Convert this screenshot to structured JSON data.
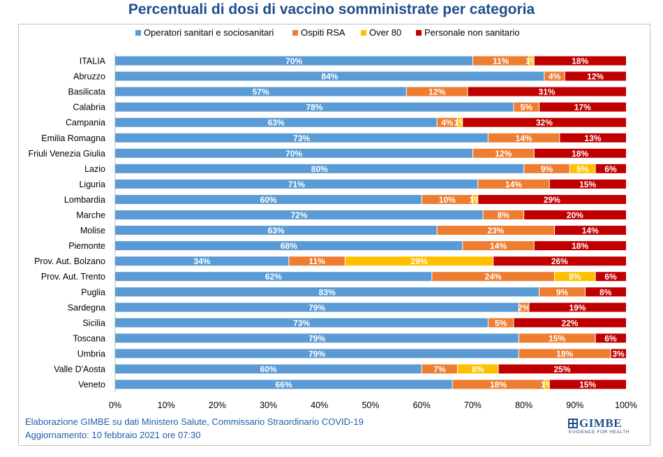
{
  "chart_data": {
    "type": "bar",
    "orientation": "horizontal",
    "stacked": true,
    "percent": true,
    "title": "Percentuali di dosi di vaccino somministrate per categoria",
    "categories": [
      "ITALIA",
      "Abruzzo",
      "Basilicata",
      "Calabria",
      "Campania",
      "Emilia Romagna",
      "Friuli Venezia Giulia",
      "Lazio",
      "Liguria",
      "Lombardia",
      "Marche",
      "Molise",
      "Piemonte",
      "Prov. Aut. Bolzano",
      "Prov. Aut. Trento",
      "Puglia",
      "Sardegna",
      "Sicilia",
      "Toscana",
      "Umbria",
      "Valle D'Aosta",
      "Veneto"
    ],
    "series": [
      {
        "name": "Operatori sanitari e sociosanitari",
        "color": "#5b9bd5",
        "values": [
          70,
          84,
          57,
          78,
          63,
          73,
          70,
          80,
          71,
          60,
          72,
          63,
          68,
          34,
          62,
          83,
          79,
          73,
          79,
          79,
          60,
          66
        ]
      },
      {
        "name": "Ospiti RSA",
        "color": "#ed7d31",
        "values": [
          11,
          4,
          12,
          5,
          4,
          14,
          12,
          9,
          14,
          10,
          8,
          23,
          14,
          11,
          24,
          9,
          2,
          5,
          15,
          18,
          7,
          18
        ]
      },
      {
        "name": "Over 80",
        "color": "#ffc000",
        "values": [
          1,
          0,
          0,
          0,
          1,
          0,
          0,
          5,
          0,
          1,
          0,
          0,
          0,
          29,
          8,
          0,
          0,
          0,
          0,
          0,
          8,
          1
        ]
      },
      {
        "name": "Personale non sanitario",
        "color": "#c00000",
        "values": [
          18,
          12,
          31,
          17,
          32,
          13,
          18,
          6,
          15,
          29,
          20,
          14,
          18,
          26,
          6,
          8,
          19,
          22,
          6,
          3,
          25,
          15
        ]
      }
    ],
    "xlim": [
      0,
      100
    ],
    "xticks": [
      "0%",
      "10%",
      "20%",
      "30%",
      "40%",
      "50%",
      "60%",
      "70%",
      "80%",
      "90%",
      "100%"
    ],
    "legend_position": "top",
    "grid": false
  },
  "footer": {
    "line1": "Elaborazione GIMBE su dati Ministero Salute, Commissario Straordinario COVID-19",
    "line2": "Aggiornamento: 10 febbraio 2021 ore 07:30"
  },
  "logo": {
    "name": "GIMBE",
    "tagline": "EVIDENCE FOR HEALTH"
  }
}
